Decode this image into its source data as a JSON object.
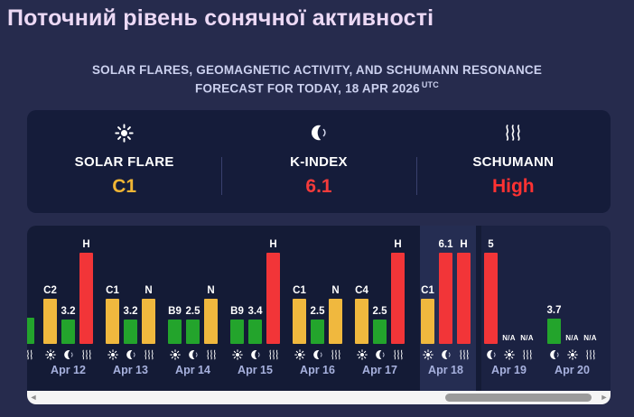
{
  "page": {
    "background": "#262b4d",
    "title": "Поточний рівень сонячної активності"
  },
  "subtitle": {
    "line1": "SOLAR FLARES, GEOMAGNETIC ACTIVITY, AND SCHUMANN RESONANCE",
    "line2": "FORECAST FOR TODAY, 18 APR 2026",
    "sup": "UTC"
  },
  "indicators": {
    "items": [
      {
        "icon": "sun-icon",
        "label": "SOLAR FLARE",
        "value": "C1",
        "value_color": "#f0b534"
      },
      {
        "icon": "moon-icon",
        "label": "K-INDEX",
        "value": "6.1",
        "value_color": "#f53b3b"
      },
      {
        "icon": "waves-icon",
        "label": "SCHUMANN",
        "value": "High",
        "value_color": "#ff3232"
      }
    ]
  },
  "chart_data": {
    "type": "bar",
    "title": "Daily forecast bars: solar flare class, K-index, Schumann resonance",
    "today": "Apr 18",
    "colors": {
      "yellow": "#f0b83e",
      "green": "#23a42c",
      "red": "#f23538"
    },
    "series_summary": {
      "dates": [
        "Apr 12",
        "Apr 13",
        "Apr 14",
        "Apr 15",
        "Apr 16",
        "Apr 17",
        "Apr 18",
        "Apr 19",
        "Apr 20"
      ],
      "solar_flare": [
        "C2",
        "C1",
        "B9",
        "B9",
        "C1",
        "C4",
        "C1",
        "N/A",
        "N/A"
      ],
      "k_index": [
        3.2,
        3.2,
        2.5,
        3.4,
        2.5,
        2.5,
        6.1,
        5,
        3.7
      ],
      "schumann": [
        "H",
        "N",
        "N",
        "H",
        "N",
        "H",
        "H",
        "N/A",
        "N/A"
      ]
    },
    "clipped_day": {
      "label": "",
      "bar": "green",
      "h": 29,
      "icon": "waves-icon",
      "metric": "k-index"
    },
    "days": [
      {
        "date": "Apr 12",
        "columns": [
          {
            "metric": "solar-flare",
            "icon": "sun-icon",
            "label": "C2",
            "bar": "yellow",
            "h": 50
          },
          {
            "metric": "k-index",
            "icon": "moon-icon",
            "label": "3.2",
            "bar": "green",
            "h": 27
          },
          {
            "metric": "schumann",
            "icon": "waves-icon",
            "label": "H",
            "bar": "red",
            "h": 101
          }
        ]
      },
      {
        "date": "Apr 13",
        "columns": [
          {
            "metric": "solar-flare",
            "icon": "sun-icon",
            "label": "C1",
            "bar": "yellow",
            "h": 50
          },
          {
            "metric": "k-index",
            "icon": "moon-icon",
            "label": "3.2",
            "bar": "green",
            "h": 27
          },
          {
            "metric": "schumann",
            "icon": "waves-icon",
            "label": "N",
            "bar": "yellow",
            "h": 50
          }
        ]
      },
      {
        "date": "Apr 14",
        "columns": [
          {
            "metric": "solar-flare",
            "icon": "sun-icon",
            "label": "B9",
            "bar": "green",
            "h": 27
          },
          {
            "metric": "k-index",
            "icon": "moon-icon",
            "label": "2.5",
            "bar": "green",
            "h": 27
          },
          {
            "metric": "schumann",
            "icon": "waves-icon",
            "label": "N",
            "bar": "yellow",
            "h": 50
          }
        ]
      },
      {
        "date": "Apr 15",
        "columns": [
          {
            "metric": "solar-flare",
            "icon": "sun-icon",
            "label": "B9",
            "bar": "green",
            "h": 27
          },
          {
            "metric": "k-index",
            "icon": "moon-icon",
            "label": "3.4",
            "bar": "green",
            "h": 27
          },
          {
            "metric": "schumann",
            "icon": "waves-icon",
            "label": "H",
            "bar": "red",
            "h": 101
          }
        ]
      },
      {
        "date": "Apr 16",
        "columns": [
          {
            "metric": "solar-flare",
            "icon": "sun-icon",
            "label": "C1",
            "bar": "yellow",
            "h": 50
          },
          {
            "metric": "k-index",
            "icon": "moon-icon",
            "label": "2.5",
            "bar": "green",
            "h": 27
          },
          {
            "metric": "schumann",
            "icon": "waves-icon",
            "label": "N",
            "bar": "yellow",
            "h": 50
          }
        ]
      },
      {
        "date": "Apr 17",
        "columns": [
          {
            "metric": "solar-flare",
            "icon": "sun-icon",
            "label": "C4",
            "bar": "yellow",
            "h": 50
          },
          {
            "metric": "k-index",
            "icon": "moon-icon",
            "label": "2.5",
            "bar": "green",
            "h": 27
          },
          {
            "metric": "schumann",
            "icon": "waves-icon",
            "label": "H",
            "bar": "red",
            "h": 101
          }
        ]
      },
      {
        "date": "Apr 18",
        "columns": [
          {
            "metric": "solar-flare",
            "icon": "sun-icon",
            "label": "C1",
            "bar": "yellow",
            "h": 50
          },
          {
            "metric": "k-index",
            "icon": "moon-icon",
            "label": "6.1",
            "bar": "red",
            "h": 101
          },
          {
            "metric": "schumann",
            "icon": "waves-icon",
            "label": "H",
            "bar": "red",
            "h": 101
          }
        ]
      },
      {
        "date": "Apr 19",
        "columns": [
          {
            "metric": "k-index",
            "icon": "moon-icon",
            "label": "5",
            "bar": "red",
            "h": 101
          },
          {
            "metric": "solar-flare",
            "icon": "sun-icon",
            "label": "N/A",
            "bar": null,
            "h": 0
          },
          {
            "metric": "schumann",
            "icon": "waves-icon",
            "label": "N/A",
            "bar": null,
            "h": 0
          }
        ]
      },
      {
        "date": "Apr 20",
        "columns": [
          {
            "metric": "k-index",
            "icon": "moon-icon",
            "label": "3.7",
            "bar": "green",
            "h": 28
          },
          {
            "metric": "solar-flare",
            "icon": "sun-icon",
            "label": "N/A",
            "bar": null,
            "h": 0
          },
          {
            "metric": "schumann",
            "icon": "waves-icon",
            "label": "N/A",
            "bar": null,
            "h": 0
          }
        ]
      }
    ]
  },
  "scrollbar": {
    "left_arrow": "◄",
    "right_arrow": "►"
  }
}
